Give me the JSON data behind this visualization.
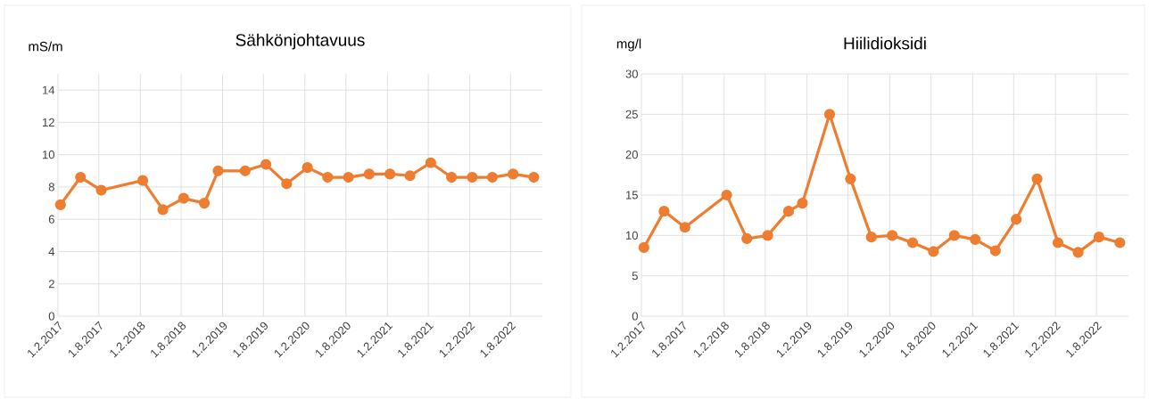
{
  "chart_data": [
    {
      "type": "line",
      "title": "Sähkönjohtavuus",
      "ylabel": "mS/m",
      "color": "#ed7d31",
      "marker": "circle",
      "grid": true,
      "x": [
        "2017-02-12",
        "2017-05-12",
        "2017-08-12",
        "2018-02-12",
        "2018-05-12",
        "2018-08-12",
        "2018-11-12",
        "2019-01-12",
        "2019-05-12",
        "2019-08-12",
        "2019-11-12",
        "2020-02-12",
        "2020-05-12",
        "2020-08-12",
        "2020-11-12",
        "2021-02-12",
        "2021-05-12",
        "2021-08-12",
        "2021-11-12",
        "2022-02-12",
        "2022-05-12",
        "2022-08-12",
        "2022-11-12"
      ],
      "values": [
        6.9,
        8.6,
        7.8,
        8.4,
        6.6,
        7.3,
        7.0,
        9.0,
        9.0,
        9.4,
        8.2,
        9.2,
        8.6,
        8.6,
        8.8,
        8.8,
        8.7,
        9.5,
        8.6,
        8.6,
        8.6,
        8.8,
        8.6
      ],
      "xlim": [
        "2017-02-01",
        "2022-12-20"
      ],
      "xticks": [
        {
          "value": "2017-02-01",
          "label": "1.2.2017"
        },
        {
          "value": "2017-08-01",
          "label": "1.8.2017"
        },
        {
          "value": "2018-02-01",
          "label": "1.2.2018"
        },
        {
          "value": "2018-08-01",
          "label": "1.8.2018"
        },
        {
          "value": "2019-02-01",
          "label": "1.2.2019"
        },
        {
          "value": "2019-08-01",
          "label": "1.8.2019"
        },
        {
          "value": "2020-02-01",
          "label": "1.2.2020"
        },
        {
          "value": "2020-08-01",
          "label": "1.8.2020"
        },
        {
          "value": "2021-02-01",
          "label": "1.2.2021"
        },
        {
          "value": "2021-08-01",
          "label": "1.8.2021"
        },
        {
          "value": "2022-02-01",
          "label": "1.2.2022"
        },
        {
          "value": "2022-08-01",
          "label": "1.8.2022"
        }
      ],
      "ylim": [
        0,
        15
      ],
      "yticks": [
        0,
        2,
        4,
        6,
        8,
        10,
        12,
        14
      ]
    },
    {
      "type": "line",
      "title": "Hiilidioksidi",
      "ylabel": "mg/l",
      "color": "#ed7d31",
      "marker": "circle",
      "grid": true,
      "x": [
        "2017-02-12",
        "2017-05-12",
        "2017-08-12",
        "2018-02-12",
        "2018-05-12",
        "2018-08-12",
        "2018-11-12",
        "2019-01-12",
        "2019-05-12",
        "2019-08-12",
        "2019-11-12",
        "2020-02-12",
        "2020-05-12",
        "2020-08-12",
        "2020-11-12",
        "2021-02-12",
        "2021-05-12",
        "2021-08-12",
        "2021-11-12",
        "2022-02-12",
        "2022-05-12",
        "2022-08-12",
        "2022-11-12"
      ],
      "values": [
        8.5,
        13,
        11,
        15,
        9.6,
        10,
        13,
        14,
        25,
        17,
        9.8,
        10,
        9.1,
        8,
        10,
        9.5,
        8.1,
        12,
        17,
        9.1,
        7.9,
        9.8,
        9.1
      ],
      "xlim": [
        "2017-02-01",
        "2022-12-20"
      ],
      "xticks": [
        {
          "value": "2017-02-01",
          "label": "1.2.2017"
        },
        {
          "value": "2017-08-01",
          "label": "1.8.2017"
        },
        {
          "value": "2018-02-01",
          "label": "1.2.2018"
        },
        {
          "value": "2018-08-01",
          "label": "1.8.2018"
        },
        {
          "value": "2019-02-01",
          "label": "1.2.2019"
        },
        {
          "value": "2019-08-01",
          "label": "1.8.2019"
        },
        {
          "value": "2020-02-01",
          "label": "1.2.2020"
        },
        {
          "value": "2020-08-01",
          "label": "1.8.2020"
        },
        {
          "value": "2021-02-01",
          "label": "1.2.2021"
        },
        {
          "value": "2021-08-01",
          "label": "1.8.2021"
        },
        {
          "value": "2022-02-01",
          "label": "1.2.2022"
        },
        {
          "value": "2022-08-01",
          "label": "1.8.2022"
        }
      ],
      "ylim": [
        0,
        30
      ],
      "yticks": [
        0,
        5,
        10,
        15,
        20,
        25,
        30
      ]
    }
  ]
}
